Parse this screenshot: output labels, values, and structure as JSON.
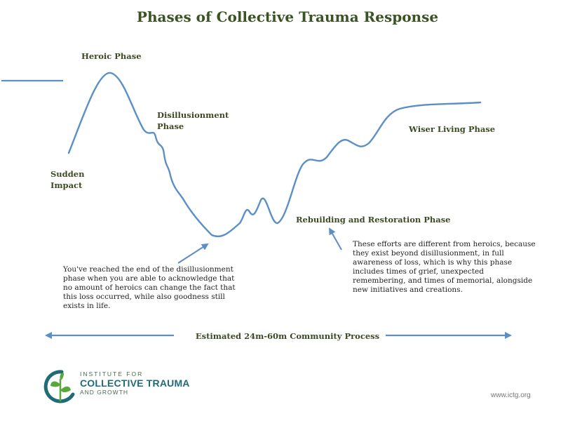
{
  "title": "Phases of Collective Trauma Response",
  "phases": {
    "sudden_impact": "Sudden\nImpact",
    "heroic": "Heroic Phase",
    "disillusionment": "Disillusionment\nPhase",
    "rebuilding": "Rebuilding and Restoration Phase",
    "wiser_living": "Wiser Living Phase"
  },
  "notes": {
    "disillusionment_end": "You've reached the end of the disillusionment phase when you are able to acknowledge that no amount of heroics can change the fact that this loss occurred, while also goodness still exists in life.",
    "rebuilding_efforts": "These efforts are different from heroics, because they exist beyond disillusionment, in full awareness of loss, which is why this phase includes times of grief, unexpected remembering, and times of memorial, alongside new initiatives and creations."
  },
  "timeline": {
    "label": "Estimated 24m-60m Community Process"
  },
  "logo": {
    "line1": "INSTITUTE FOR",
    "line2": "COLLECTIVE TRAUMA",
    "line3": "AND GROWTH"
  },
  "url": "www.ictg.org",
  "colors": {
    "curve": "#5b8fc7",
    "title": "#3b5323",
    "logo_green": "#5aa83c",
    "logo_teal": "#1f6b78"
  }
}
